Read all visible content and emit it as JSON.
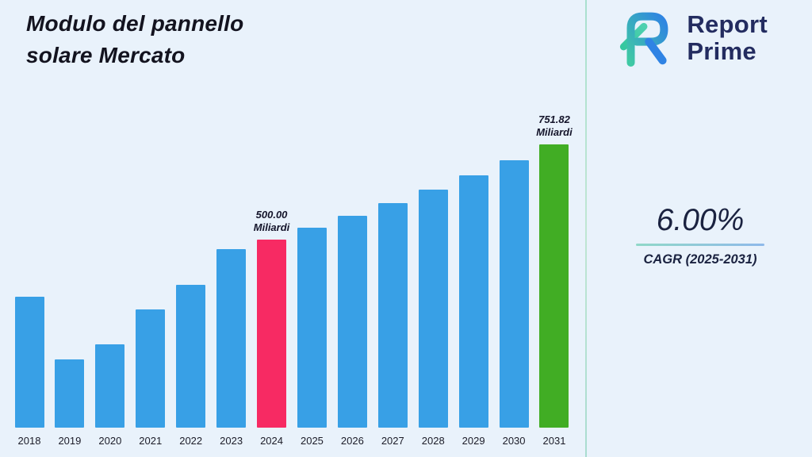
{
  "page": {
    "title_line1": "Modulo del pannello",
    "title_line2": "solare Mercato"
  },
  "brand": {
    "name_line1": "Report",
    "name_line2": "Prime"
  },
  "stats": {
    "cagr_value": "6.00%",
    "cagr_label": "CAGR (2025-2031)"
  },
  "chart_data": {
    "type": "bar",
    "title": "Modulo del pannello solare Mercato",
    "unit": "Miliardi",
    "categories": [
      "2018",
      "2019",
      "2020",
      "2021",
      "2022",
      "2023",
      "2024",
      "2025",
      "2026",
      "2027",
      "2028",
      "2029",
      "2030",
      "2031"
    ],
    "values": [
      348,
      181,
      222,
      313,
      379,
      474,
      500,
      530,
      562,
      595,
      631,
      669,
      709,
      751.82
    ],
    "ylim": [
      0,
      751.82
    ],
    "xlabel": "",
    "ylabel": "",
    "grid": false,
    "legend": false,
    "bar_colors": {
      "default": "#38a0e6",
      "2024": "#f72a63",
      "2031": "#41ad24"
    },
    "annotations": [
      {
        "year": "2024",
        "line1": "500.00",
        "line2": "Miliardi"
      },
      {
        "year": "2031",
        "line1": "751.82",
        "line2": "Miliardi"
      }
    ]
  }
}
